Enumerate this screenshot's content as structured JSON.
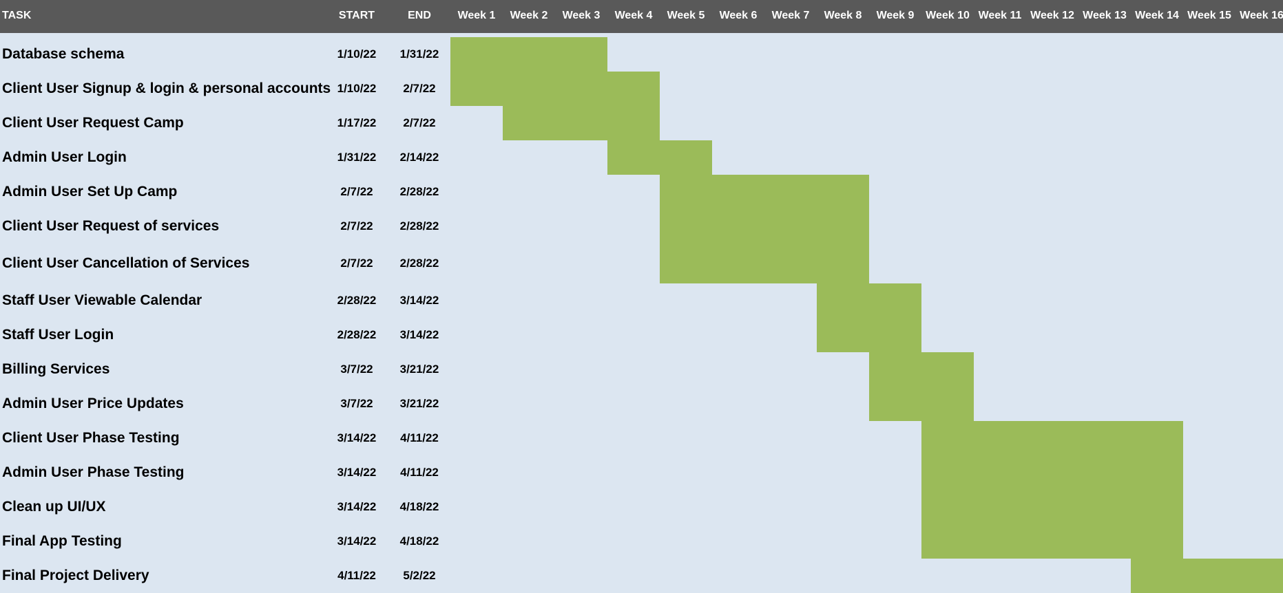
{
  "header": {
    "task_label": "TASK",
    "start_label": "START",
    "end_label": "END"
  },
  "colors": {
    "bar": "#9bbb59",
    "background": "#dce6f1",
    "header": "#595959"
  },
  "chart_data": {
    "type": "gantt",
    "weeks": [
      "Week 1",
      "Week 2",
      "Week 3",
      "Week 4",
      "Week 5",
      "Week 6",
      "Week 7",
      "Week 8",
      "Week 9",
      "Week 10",
      "Week 11",
      "Week 12",
      "Week 13",
      "Week 14",
      "Week 15",
      "Week 16"
    ],
    "tasks": [
      {
        "name": "Database schema",
        "start": "1/10/22",
        "end": "1/31/22",
        "start_week": 1,
        "end_week": 3
      },
      {
        "name": "Client User Signup & login & personal accounts",
        "start": "1/10/22",
        "end": "2/7/22",
        "start_week": 1,
        "end_week": 4
      },
      {
        "name": "Client User Request Camp",
        "start": "1/17/22",
        "end": "2/7/22",
        "start_week": 2,
        "end_week": 4
      },
      {
        "name": "Admin User Login",
        "start": "1/31/22",
        "end": "2/14/22",
        "start_week": 4,
        "end_week": 5
      },
      {
        "name": "Admin User Set Up Camp",
        "start": "2/7/22",
        "end": "2/28/22",
        "start_week": 5,
        "end_week": 8
      },
      {
        "name": "Client User Request of services",
        "start": "2/7/22",
        "end": "2/28/22",
        "start_week": 5,
        "end_week": 8
      },
      {
        "name": "Client User Cancellation of Services",
        "start": "2/7/22",
        "end": "2/28/22",
        "start_week": 5,
        "end_week": 8
      },
      {
        "name": "Staff User Viewable Calendar",
        "start": "2/28/22",
        "end": "3/14/22",
        "start_week": 8,
        "end_week": 9
      },
      {
        "name": "Staff User Login",
        "start": "2/28/22",
        "end": "3/14/22",
        "start_week": 8,
        "end_week": 9
      },
      {
        "name": "Billing Services",
        "start": "3/7/22",
        "end": "3/21/22",
        "start_week": 9,
        "end_week": 10
      },
      {
        "name": "Admin User Price Updates",
        "start": "3/7/22",
        "end": "3/21/22",
        "start_week": 9,
        "end_week": 10
      },
      {
        "name": "Client User Phase Testing",
        "start": "3/14/22",
        "end": "4/11/22",
        "start_week": 10,
        "end_week": 14
      },
      {
        "name": "Admin User Phase Testing",
        "start": "3/14/22",
        "end": "4/11/22",
        "start_week": 10,
        "end_week": 14
      },
      {
        "name": "Clean up UI/UX",
        "start": "3/14/22",
        "end": "4/18/22",
        "start_week": 10,
        "end_week": 14
      },
      {
        "name": "Final App Testing",
        "start": "3/14/22",
        "end": "4/18/22",
        "start_week": 10,
        "end_week": 14
      },
      {
        "name": "Final Project Delivery",
        "start": "4/11/22",
        "end": "5/2/22",
        "start_week": 14,
        "end_week": 16
      }
    ]
  }
}
